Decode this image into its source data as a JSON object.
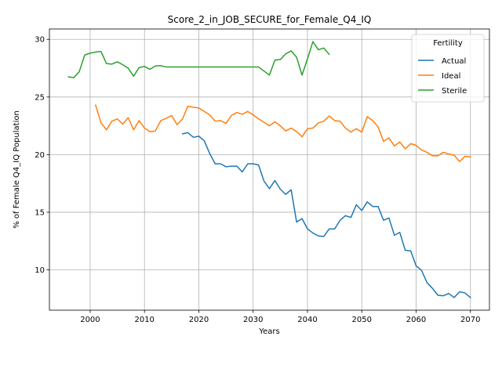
{
  "chart_data": {
    "type": "line",
    "title": "Score_2_in_JOB_SECURE_for_Female_Q4_IQ",
    "xlabel": "Years",
    "ylabel": "% of Female Q4_IQ Population",
    "xlim": [
      1992.5,
      2073.5
    ],
    "ylim": [
      6.5,
      30.9
    ],
    "x_ticks": [
      2000,
      2010,
      2020,
      2030,
      2040,
      2050,
      2060,
      2070
    ],
    "y_ticks": [
      10,
      15,
      20,
      25,
      30
    ],
    "grid": true,
    "legend": {
      "title": "Fertility",
      "position": "top-right"
    },
    "series": [
      {
        "name": "Actual",
        "color": "#1f77b4",
        "x": [
          2017,
          2018,
          2019,
          2020,
          2021,
          2022,
          2023,
          2024,
          2025,
          2026,
          2027,
          2028,
          2029,
          2030,
          2031,
          2032,
          2033,
          2034,
          2035,
          2036,
          2037,
          2038,
          2039,
          2040,
          2041,
          2042,
          2043,
          2044,
          2045,
          2046,
          2047,
          2048,
          2049,
          2050,
          2051,
          2052,
          2053,
          2054,
          2055,
          2056,
          2057,
          2058,
          2059,
          2060,
          2061,
          2062,
          2063,
          2064,
          2065,
          2066,
          2067,
          2068,
          2069,
          2070
        ],
        "values": [
          21.8,
          21.9,
          21.5,
          21.6,
          21.2,
          20.1,
          19.2,
          19.2,
          18.95,
          19.0,
          19.0,
          18.5,
          19.2,
          19.2,
          19.1,
          17.7,
          17.05,
          17.75,
          17.0,
          16.55,
          16.95,
          14.15,
          14.45,
          13.55,
          13.2,
          12.95,
          12.9,
          13.55,
          13.55,
          14.3,
          14.7,
          14.55,
          15.65,
          15.15,
          15.9,
          15.5,
          15.5,
          14.3,
          14.5,
          13.0,
          13.25,
          11.7,
          11.65,
          10.35,
          9.95,
          8.9,
          8.4,
          7.8,
          7.75,
          7.95,
          7.6,
          8.1,
          8.0,
          7.6
        ]
      },
      {
        "name": "Ideal",
        "color": "#ff7f0e",
        "x": [
          2001,
          2002,
          2003,
          2004,
          2005,
          2006,
          2007,
          2008,
          2009,
          2010,
          2011,
          2012,
          2013,
          2014,
          2015,
          2016,
          2017,
          2018,
          2019,
          2020,
          2021,
          2022,
          2023,
          2024,
          2025,
          2026,
          2027,
          2028,
          2029,
          2030,
          2031,
          2032,
          2033,
          2034,
          2035,
          2036,
          2037,
          2038,
          2039,
          2040,
          2041,
          2042,
          2043,
          2044,
          2045,
          2046,
          2047,
          2048,
          2049,
          2050,
          2051,
          2052,
          2053,
          2054,
          2055,
          2056,
          2057,
          2058,
          2059,
          2060,
          2061,
          2062,
          2063,
          2064,
          2065,
          2066,
          2067,
          2068,
          2069,
          2070
        ],
        "values": [
          24.3,
          22.75,
          22.15,
          22.9,
          23.1,
          22.65,
          23.2,
          22.15,
          22.95,
          22.3,
          22.0,
          22.05,
          22.95,
          23.15,
          23.4,
          22.6,
          23.1,
          24.2,
          24.1,
          24.05,
          23.75,
          23.45,
          22.9,
          22.95,
          22.7,
          23.4,
          23.65,
          23.5,
          23.75,
          23.45,
          23.1,
          22.8,
          22.5,
          22.85,
          22.5,
          22.05,
          22.3,
          22.0,
          21.55,
          22.25,
          22.3,
          22.75,
          22.9,
          23.35,
          22.95,
          22.9,
          22.3,
          21.95,
          22.25,
          21.95,
          23.3,
          22.95,
          22.4,
          21.15,
          21.45,
          20.75,
          21.1,
          20.5,
          20.95,
          20.8,
          20.4,
          20.2,
          19.9,
          19.9,
          20.2,
          20.05,
          19.95,
          19.4,
          19.85,
          19.8
        ]
      },
      {
        "name": "Sterile",
        "color": "#2ca02c",
        "x": [
          1996,
          1997,
          1998,
          1999,
          2000,
          2001,
          2002,
          2003,
          2004,
          2005,
          2006,
          2007,
          2008,
          2009,
          2010,
          2011,
          2012,
          2013,
          2014,
          2015,
          2016,
          2017,
          2018,
          2019,
          2020,
          2021,
          2022,
          2023,
          2024,
          2025,
          2026,
          2027,
          2028,
          2029,
          2030,
          2031,
          2032,
          2033,
          2034,
          2035,
          2036,
          2037,
          2038,
          2039,
          2040,
          2041,
          2042,
          2043,
          2044
        ],
        "values": [
          26.75,
          26.68,
          27.2,
          28.65,
          28.8,
          28.9,
          28.95,
          27.9,
          27.85,
          28.05,
          27.8,
          27.5,
          26.8,
          27.55,
          27.65,
          27.4,
          27.7,
          27.72,
          27.6,
          27.6,
          27.6,
          27.6,
          27.6,
          27.6,
          27.6,
          27.6,
          27.6,
          27.6,
          27.6,
          27.6,
          27.6,
          27.6,
          27.6,
          27.6,
          27.6,
          27.6,
          27.25,
          26.9,
          28.2,
          28.25,
          28.75,
          29.0,
          28.45,
          26.9,
          28.3,
          29.8,
          29.1,
          29.25,
          28.7
        ]
      }
    ]
  }
}
